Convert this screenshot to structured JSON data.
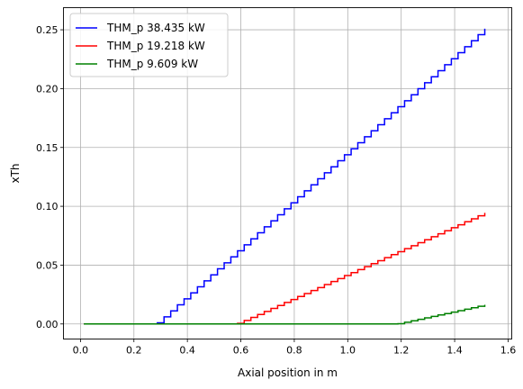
{
  "chart_data": {
    "type": "line",
    "style": "step",
    "title": "",
    "xlabel": "Axial position in m",
    "ylabel": "xTh",
    "xlim": [
      -0.0636,
      1.6136
    ],
    "ylim": [
      -0.0128,
      0.2688
    ],
    "x_ticks": [
      0.0,
      0.2,
      0.4,
      0.6,
      0.8,
      1.0,
      1.2,
      1.4,
      1.6
    ],
    "x_tick_labels": [
      "0.0",
      "0.2",
      "0.4",
      "0.6",
      "0.8",
      "1.0",
      "1.2",
      "1.4",
      "1.6"
    ],
    "y_ticks": [
      0.0,
      0.05,
      0.1,
      0.15,
      0.2,
      0.25
    ],
    "y_tick_labels": [
      "0.00",
      "0.05",
      "0.10",
      "0.15",
      "0.20",
      "0.25"
    ],
    "grid": true,
    "legend_position": "top-left",
    "x_start": 0.0127,
    "x_step": 0.025,
    "n_points": 61,
    "series": [
      {
        "name": "THM_p 38.435 kW",
        "color": "#0000ff",
        "onset_x": 0.283,
        "end_x": 1.5377,
        "end_y": 0.256
      },
      {
        "name": "THM_p 19.218 kW",
        "color": "#ff0000",
        "onset_x": 0.583,
        "end_x": 1.5377,
        "end_y": 0.097
      },
      {
        "name": "THM_p 9.609 kW",
        "color": "#008000",
        "onset_x": 1.183,
        "end_x": 1.5377,
        "end_y": 0.0175
      }
    ]
  }
}
